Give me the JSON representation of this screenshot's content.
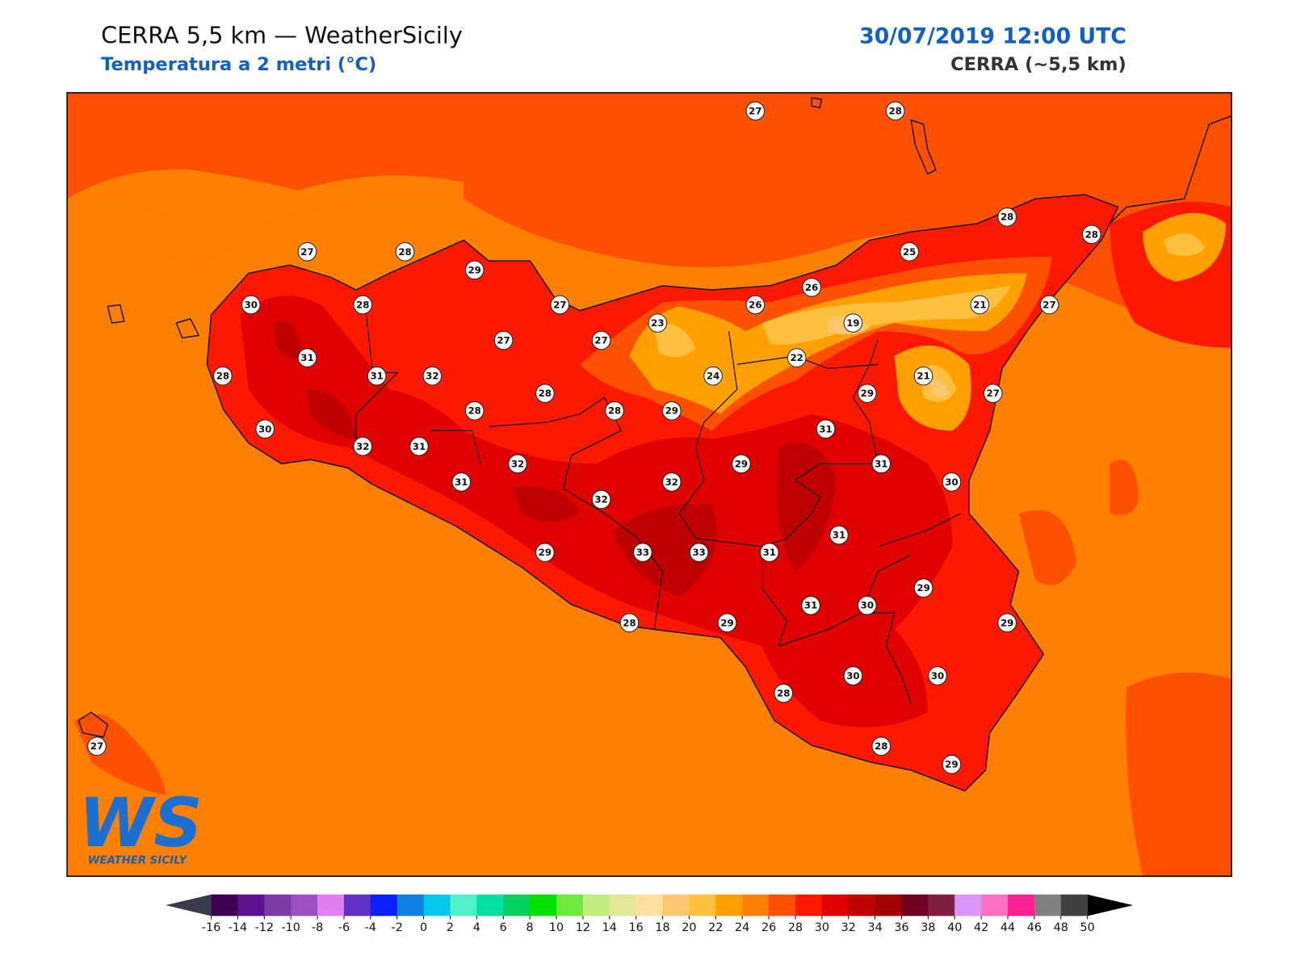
{
  "header": {
    "title": "CERRA 5,5 km — WeatherSicily",
    "subtitle": "Temperatura a 2 metri (°C)",
    "datetime": "30/07/2019 12:00 UTC",
    "model": "CERRA (~5,5 km)"
  },
  "stations": [
    27,
    28,
    28,
    28,
    27,
    28,
    29,
    25,
    26,
    30,
    28,
    27,
    26,
    21,
    27,
    23,
    19,
    27,
    27,
    31,
    22,
    28,
    31,
    32,
    24,
    21,
    28,
    29,
    27,
    28,
    28,
    29,
    30,
    31,
    32,
    31,
    32,
    29,
    31,
    31,
    32,
    30,
    32,
    31,
    29,
    33,
    33,
    31,
    29,
    31,
    30,
    28,
    29,
    29,
    30,
    30,
    28,
    28,
    29,
    27
  ],
  "colorbar": {
    "ticks": [
      -16,
      -14,
      -12,
      -10,
      -8,
      -6,
      -4,
      -2,
      0,
      2,
      4,
      6,
      8,
      10,
      12,
      14,
      16,
      18,
      20,
      22,
      24,
      26,
      28,
      30,
      32,
      34,
      36,
      38,
      40,
      42,
      44,
      46,
      48,
      50
    ],
    "colors": [
      "#3d0050",
      "#5e1090",
      "#7a3aa8",
      "#9a50c0",
      "#e080f0",
      "#6030c8",
      "#0a20ff",
      "#1080e0",
      "#00c8e8",
      "#50f0c8",
      "#00e0a0",
      "#00d060",
      "#00e000",
      "#70e840",
      "#c0ec80",
      "#e0e898",
      "#ffe0a0",
      "#ffc870",
      "#ffc040",
      "#ffa000",
      "#ff8000",
      "#ff5000",
      "#ff1800",
      "#e00000",
      "#c00000",
      "#a00000",
      "#700020",
      "#802040",
      "#d898f8",
      "#ff70c0",
      "#ff2090",
      "#808080",
      "#404040"
    ]
  },
  "logo": {
    "mark": "WS",
    "text": "WEATHER SICILY"
  }
}
